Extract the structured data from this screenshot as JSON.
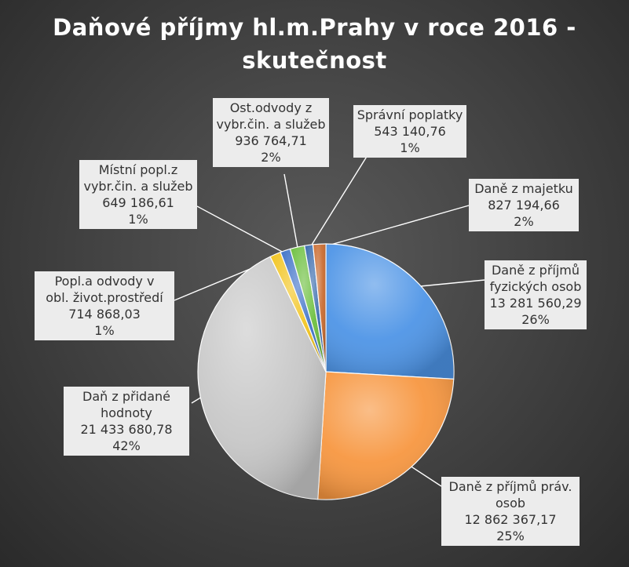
{
  "chart_data": {
    "type": "pie",
    "title_lines": [
      "Daňové příjmy hl.m.Prahy v roce 2016 -",
      "skutečnost"
    ],
    "slices": [
      {
        "label_lines": [
          "Daně z příjmů",
          "fyzických osob"
        ],
        "value": 13281560.29,
        "value_text": "13 281 560,29",
        "percent": "26%",
        "color": "#4d94e6"
      },
      {
        "label_lines": [
          "Daně z příjmů práv.",
          "osob"
        ],
        "value": 12862367.17,
        "value_text": "12 862 367,17",
        "percent": "25%",
        "color": "#f7963f"
      },
      {
        "label_lines": [
          "Daň z přidané",
          "hodnoty"
        ],
        "value": 21433680.78,
        "value_text": "21 433 680,78",
        "percent": "42%",
        "color": "#c8c8c8"
      },
      {
        "label_lines": [
          "Popl.a odvody v",
          "obl. život.prostředí"
        ],
        "value": 714868.03,
        "value_text": "714 868,03",
        "percent": "1%",
        "color": "#f2c41e"
      },
      {
        "label_lines": [
          "Místní popl.z",
          "vybr.čin. a služeb"
        ],
        "value": 649186.61,
        "value_text": "649 186,61",
        "percent": "1%",
        "color": "#3f72c8"
      },
      {
        "label_lines": [
          "Ost.odvody z",
          "vybr.čin. a služeb"
        ],
        "value": 936764.71,
        "value_text": "936 764,71",
        "percent": "2%",
        "color": "#6cbf3e"
      },
      {
        "label_lines": [
          "Správní poplatky"
        ],
        "value": 543140.76,
        "value_text": "543 140,76",
        "percent": "1%",
        "color": "#3568ab"
      },
      {
        "label_lines": [
          "Daně z majetku"
        ],
        "value": 827194.66,
        "value_text": "827 194,66",
        "percent": "2%",
        "color": "#c96a2e"
      }
    ]
  }
}
